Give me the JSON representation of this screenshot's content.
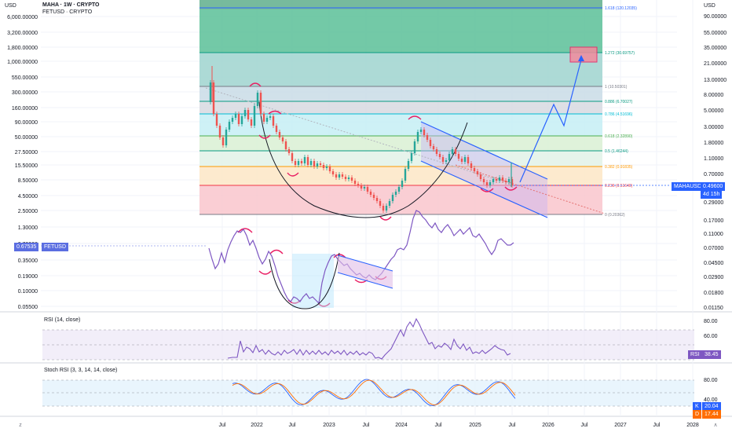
{
  "header": {
    "title": "MAHA · 1W · CRYPTO",
    "subtitle": "FETUSD · CRYPTO",
    "currency_left": "USD",
    "currency_right": "USD"
  },
  "axes": {
    "left_ticks": [
      "6,000.00000",
      "3,200.00000",
      "1,800.00000",
      "1,000.00000",
      "550.00000",
      "300.00000",
      "160.00000",
      "90.00000",
      "50.00000",
      "27.50000",
      "15.50000",
      "8.50000",
      "4.50000",
      "2.50000",
      "1.30000",
      "0.70000",
      "0.35000",
      "0.19000",
      "0.10000",
      "0.05500"
    ],
    "right_ticks": [
      "90.00000",
      "55.00000",
      "35.00000",
      "21.00000",
      "13.00000",
      "8.00000",
      "5.00000",
      "3.00000",
      "1.80000",
      "1.10000",
      "0.70000",
      "0.29000",
      "0.17000",
      "0.11000",
      "0.07000",
      "0.04500",
      "0.02900",
      "0.01800",
      "0.01150"
    ],
    "x_ticks": [
      "Jul",
      "2022",
      "Jul",
      "2023",
      "Jul",
      "2024",
      "Jul",
      "2025",
      "Jul",
      "2026",
      "Jul",
      "2027",
      "Jul",
      "2028"
    ],
    "x_left_end": "z",
    "x_right_end": "∧"
  },
  "price_tags": {
    "maha_label": "MAHAUSD",
    "maha_price": "0.49600",
    "maha_countdown": "4d 15h",
    "fet_price": "0.67535",
    "fet_label": "FETUSD"
  },
  "fib_levels": [
    {
      "label": "1.618 (120.12035)",
      "color": "#2962ff"
    },
    {
      "label": "1.272 (30.69757)",
      "color": "#089981"
    },
    {
      "label": "1 (10.50301)",
      "color": "#787b86"
    },
    {
      "label": "0.886 (6.70027)",
      "color": "#089981"
    },
    {
      "label": "0.786 (4.51696)",
      "color": "#00bcd4"
    },
    {
      "label": "0.618 (2.32890)",
      "color": "#4caf50"
    },
    {
      "label": "0.5 (1.46244)",
      "color": "#089981"
    },
    {
      "label": "0.382 (0.91835)",
      "color": "#ff9800"
    },
    {
      "label": "0.236 (0.51640)",
      "color": "#f23645"
    },
    {
      "label": "0 (0.20362)",
      "color": "#787b86"
    }
  ],
  "rsi": {
    "title": "RSI (14, close)",
    "ticks": [
      "80.00",
      "60.00",
      "40.00"
    ],
    "badge_label": "RSI",
    "badge_value": "38.45"
  },
  "stoch": {
    "title": "Stoch RSI (3, 3, 14, 14, close)",
    "ticks": [
      "80.00",
      "40.00",
      "20.00"
    ],
    "k_label": "K",
    "k_value": "20.04",
    "d_label": "D",
    "d_value": "17.44"
  },
  "colors": {
    "maha_line": "#7e57c2",
    "fet_tag": "#5b6ee1",
    "channel": "#2962ff",
    "projection": "#2962ff",
    "arc_marks": "#e91e63",
    "stoch_k": "#2962ff",
    "stoch_d": "#ff6d00"
  },
  "chart_data": [
    {
      "type": "line",
      "title": "MAHA · 1W · CRYPTO",
      "note_series": "MAHAUSD weekly candles with Fibonacci extension and projection",
      "series": [
        {
          "name": "MAHAUSD",
          "last": 0.496
        }
      ],
      "yscale": "log"
    },
    {
      "type": "line",
      "title": "FETUSD · CRYPTO",
      "series": [
        {
          "name": "FETUSD",
          "last": 0.67535
        }
      ],
      "yscale": "log"
    },
    {
      "type": "line",
      "title": "RSI (14, close)",
      "ylim": [
        20,
        90
      ],
      "series": [
        {
          "name": "RSI",
          "last": 38.45
        }
      ]
    },
    {
      "type": "line",
      "title": "Stoch RSI (3, 3, 14, 14, close)",
      "ylim": [
        0,
        100
      ],
      "series": [
        {
          "name": "K",
          "last": 20.04
        },
        {
          "name": "D",
          "last": 17.44
        }
      ]
    }
  ]
}
